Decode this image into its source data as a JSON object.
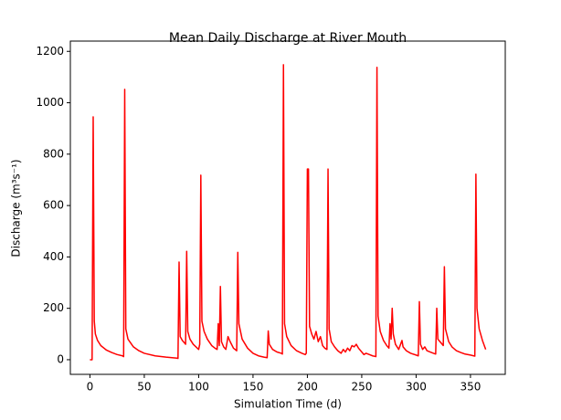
{
  "chart_data": {
    "type": "line",
    "title": "Mean Daily Discharge at River Mouth",
    "x_label": "Simulation Time (d)",
    "y_label": "Discharge (m³s⁻¹)",
    "color": "#ff0000",
    "xlim": [
      -18,
      382
    ],
    "ylim": [
      -57,
      1240
    ],
    "xticks": [
      0,
      50,
      100,
      150,
      200,
      250,
      300,
      350
    ],
    "yticks": [
      0,
      200,
      400,
      600,
      800,
      1000,
      1200
    ],
    "x": [
      0,
      2,
      3,
      4,
      5,
      7,
      10,
      15,
      20,
      25,
      30,
      31,
      32,
      33,
      35,
      40,
      45,
      50,
      60,
      70,
      80,
      81,
      82,
      83,
      85,
      88,
      89,
      90,
      92,
      95,
      100,
      101,
      102,
      103,
      105,
      108,
      112,
      115,
      117,
      118,
      119,
      120,
      121,
      123,
      125,
      127,
      129,
      132,
      135,
      136,
      137,
      140,
      145,
      150,
      155,
      160,
      163,
      164,
      165,
      168,
      172,
      176,
      177,
      178,
      179,
      181,
      185,
      190,
      195,
      198,
      199,
      200,
      201,
      202,
      204,
      206,
      208,
      210,
      212,
      214,
      216,
      218,
      219,
      220,
      222,
      225,
      228,
      231,
      233,
      235,
      237,
      239,
      241,
      243,
      245,
      247,
      250,
      252,
      254,
      257,
      260,
      263,
      264,
      265,
      267,
      270,
      273,
      275,
      276,
      277,
      278,
      279,
      281,
      284,
      287,
      288,
      291,
      295,
      300,
      302,
      303,
      304,
      306,
      308,
      310,
      313,
      316,
      318,
      319,
      320,
      322,
      325,
      326,
      327,
      330,
      333,
      337,
      341,
      345,
      350,
      353,
      354,
      355,
      356,
      358,
      361,
      364
    ],
    "values": [
      0,
      0,
      945,
      150,
      100,
      75,
      55,
      38,
      28,
      20,
      15,
      12,
      1052,
      120,
      80,
      50,
      35,
      25,
      15,
      10,
      6,
      5,
      380,
      90,
      75,
      60,
      422,
      110,
      80,
      60,
      40,
      60,
      718,
      150,
      110,
      80,
      55,
      45,
      40,
      140,
      55,
      285,
      70,
      50,
      40,
      90,
      70,
      45,
      35,
      418,
      140,
      80,
      45,
      25,
      15,
      10,
      8,
      112,
      60,
      40,
      30,
      25,
      22,
      1148,
      140,
      90,
      55,
      35,
      25,
      20,
      25,
      742,
      742,
      130,
      100,
      80,
      110,
      70,
      90,
      55,
      45,
      40,
      742,
      120,
      70,
      50,
      35,
      25,
      40,
      30,
      45,
      35,
      55,
      50,
      60,
      45,
      30,
      20,
      25,
      20,
      15,
      12,
      1138,
      170,
      110,
      75,
      55,
      45,
      140,
      80,
      200,
      100,
      60,
      40,
      75,
      50,
      35,
      25,
      18,
      15,
      226,
      60,
      40,
      50,
      35,
      30,
      25,
      22,
      200,
      80,
      70,
      55,
      362,
      120,
      70,
      50,
      35,
      28,
      22,
      18,
      15,
      14,
      722,
      200,
      120,
      75,
      40
    ]
  }
}
